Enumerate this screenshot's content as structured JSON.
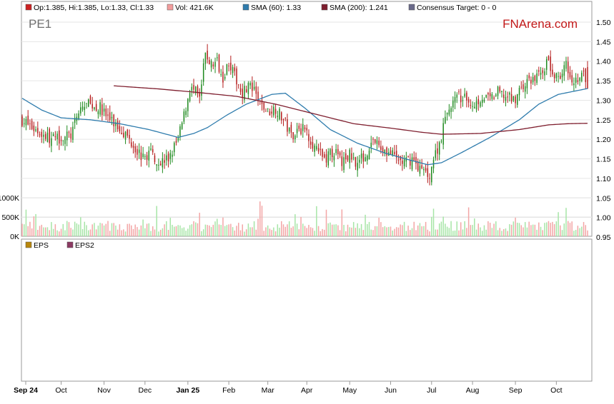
{
  "chart_data": {
    "type": "candlestick",
    "ticker": "PE1",
    "brand": "FNArena.com",
    "legend": {
      "price": "Op:1.385, Hi:1.385, Lo:1.33, Cl:1.33",
      "volume": "Vol: 421.6K",
      "sma60": "SMA (60): 1.33",
      "sma200": "SMA (200): 1.241",
      "consensus": "Consensus Target: 0 - 0"
    },
    "eps_legend": {
      "eps": "EPS",
      "eps2": "EPS2"
    },
    "price_axis": {
      "ylim": [
        0.95,
        1.5
      ],
      "ticks": [
        "0.95",
        "1.00",
        "1.05",
        "1.10",
        "1.15",
        "1.20",
        "1.25",
        "1.30",
        "1.35",
        "1.40",
        "1.45",
        "1.50"
      ]
    },
    "volume_axis": {
      "max": 1000000,
      "ticks": [
        {
          "value": 0,
          "label": "0K"
        },
        {
          "value": 500000,
          "label": "500K"
        },
        {
          "value": 1000000,
          "label": "1000K"
        }
      ]
    },
    "x_labels": [
      "Sep 24",
      "Oct",
      "Nov",
      "Dec",
      "Jan 25",
      "Feb",
      "Mar",
      "Apr",
      "May",
      "Jun",
      "Jul",
      "Aug",
      "Sep",
      "Oct"
    ],
    "bold_labels": [
      "Sep 24",
      "Jan 25"
    ],
    "bars_per_month": [
      0,
      20,
      42,
      63,
      85,
      106,
      126,
      146,
      168,
      189,
      210,
      231,
      253,
      274
    ],
    "total_bars": 291,
    "close_keypoints": [
      [
        0,
        1.25
      ],
      [
        8,
        1.22
      ],
      [
        15,
        1.2
      ],
      [
        25,
        1.21
      ],
      [
        27,
        1.24
      ],
      [
        30,
        1.28
      ],
      [
        34,
        1.29
      ],
      [
        40,
        1.28
      ],
      [
        45,
        1.25
      ],
      [
        52,
        1.22
      ],
      [
        58,
        1.18
      ],
      [
        62,
        1.15
      ],
      [
        66,
        1.17
      ],
      [
        70,
        1.14
      ],
      [
        75,
        1.15
      ],
      [
        80,
        1.2
      ],
      [
        83,
        1.26
      ],
      [
        86,
        1.33
      ],
      [
        89,
        1.32
      ],
      [
        91,
        1.3
      ],
      [
        94,
        1.42
      ],
      [
        97,
        1.39
      ],
      [
        100,
        1.4
      ],
      [
        103,
        1.36
      ],
      [
        106,
        1.4
      ],
      [
        109,
        1.36
      ],
      [
        113,
        1.32
      ],
      [
        116,
        1.34
      ],
      [
        119,
        1.32
      ],
      [
        122,
        1.29
      ],
      [
        126,
        1.27
      ],
      [
        130,
        1.28
      ],
      [
        134,
        1.25
      ],
      [
        138,
        1.21
      ],
      [
        142,
        1.23
      ],
      [
        146,
        1.22
      ],
      [
        151,
        1.17
      ],
      [
        155,
        1.15
      ],
      [
        160,
        1.17
      ],
      [
        164,
        1.14
      ],
      [
        168,
        1.16
      ],
      [
        172,
        1.14
      ],
      [
        176,
        1.16
      ],
      [
        180,
        1.2
      ],
      [
        183,
        1.18
      ],
      [
        187,
        1.17
      ],
      [
        192,
        1.15
      ],
      [
        196,
        1.14
      ],
      [
        200,
        1.15
      ],
      [
        205,
        1.12
      ],
      [
        209,
        1.11
      ],
      [
        211,
        1.15
      ],
      [
        214,
        1.19
      ],
      [
        217,
        1.25
      ],
      [
        220,
        1.29
      ],
      [
        224,
        1.31
      ],
      [
        228,
        1.3
      ],
      [
        232,
        1.29
      ],
      [
        236,
        1.31
      ],
      [
        240,
        1.3
      ],
      [
        244,
        1.32
      ],
      [
        248,
        1.31
      ],
      [
        252,
        1.3
      ],
      [
        256,
        1.33
      ],
      [
        260,
        1.35
      ],
      [
        264,
        1.36
      ],
      [
        267,
        1.38
      ],
      [
        270,
        1.4
      ],
      [
        273,
        1.35
      ],
      [
        276,
        1.37
      ],
      [
        279,
        1.39
      ],
      [
        282,
        1.36
      ],
      [
        285,
        1.35
      ],
      [
        288,
        1.37
      ],
      [
        290,
        1.33
      ]
    ],
    "sma60_keypoints": [
      [
        0,
        1.305
      ],
      [
        10,
        1.275
      ],
      [
        20,
        1.255
      ],
      [
        35,
        1.25
      ],
      [
        50,
        1.24
      ],
      [
        65,
        1.225
      ],
      [
        80,
        1.205
      ],
      [
        88,
        1.215
      ],
      [
        95,
        1.23
      ],
      [
        105,
        1.262
      ],
      [
        115,
        1.29
      ],
      [
        128,
        1.315
      ],
      [
        135,
        1.318
      ],
      [
        145,
        1.28
      ],
      [
        158,
        1.225
      ],
      [
        172,
        1.19
      ],
      [
        186,
        1.165
      ],
      [
        198,
        1.148
      ],
      [
        208,
        1.135
      ],
      [
        215,
        1.14
      ],
      [
        225,
        1.165
      ],
      [
        240,
        1.205
      ],
      [
        255,
        1.25
      ],
      [
        265,
        1.29
      ],
      [
        275,
        1.315
      ],
      [
        290,
        1.33
      ]
    ],
    "sma200_keypoints": [
      [
        47,
        1.337
      ],
      [
        70,
        1.329
      ],
      [
        90,
        1.32
      ],
      [
        110,
        1.31
      ],
      [
        130,
        1.29
      ],
      [
        150,
        1.265
      ],
      [
        170,
        1.24
      ],
      [
        190,
        1.228
      ],
      [
        205,
        1.218
      ],
      [
        215,
        1.213
      ],
      [
        235,
        1.215
      ],
      [
        255,
        1.225
      ],
      [
        270,
        1.237
      ],
      [
        280,
        1.24
      ],
      [
        290,
        1.241
      ]
    ]
  }
}
